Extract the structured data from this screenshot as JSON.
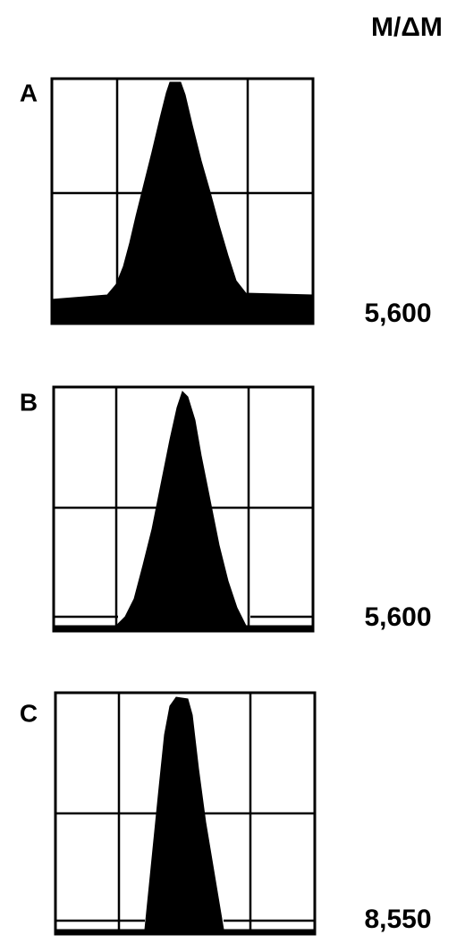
{
  "header": {
    "title": "M/ΔM"
  },
  "panels": [
    {
      "label": "A",
      "resolution": "5,600"
    },
    {
      "label": "B",
      "resolution": "5,600"
    },
    {
      "label": "C",
      "resolution": "8,550"
    }
  ]
}
